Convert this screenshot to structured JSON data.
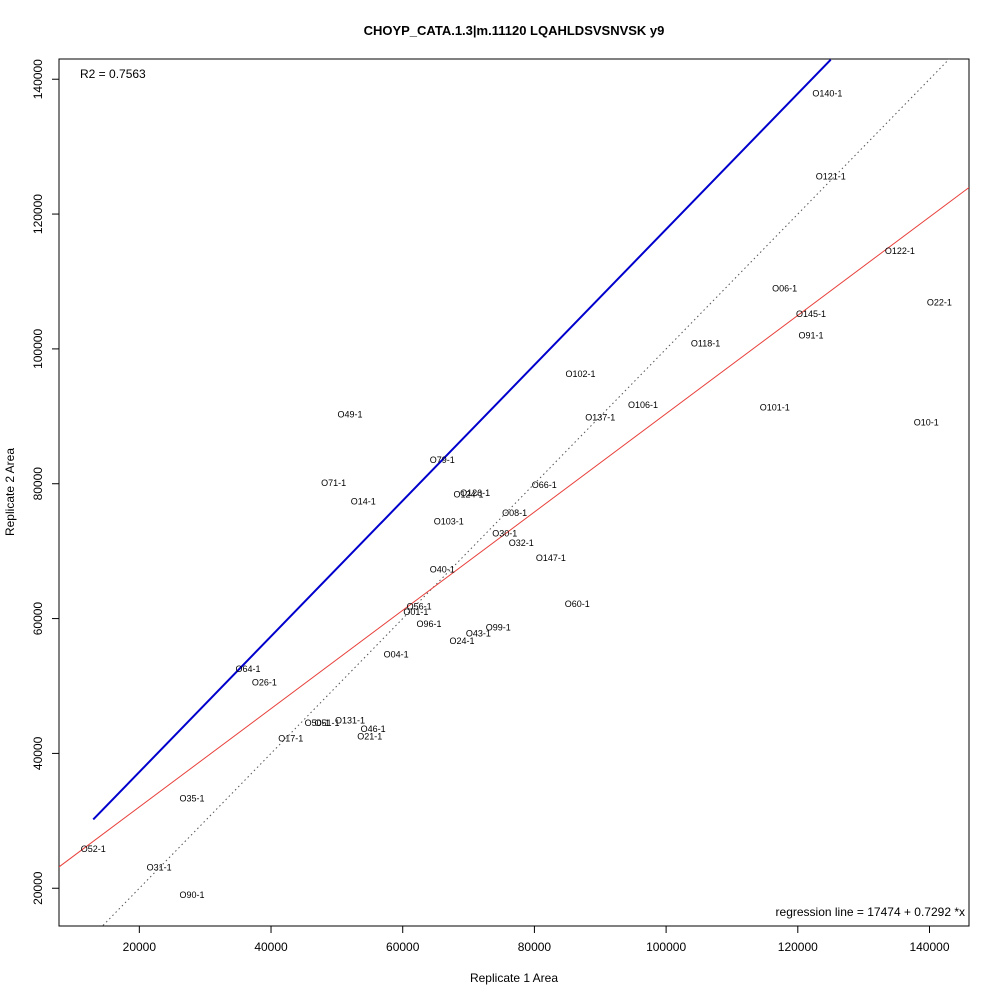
{
  "chart_data": {
    "type": "scatter",
    "title": "CHOYP_CATA.1.3|m.11120 LQAHLDSVSNVSK y9",
    "xlabel": "Replicate 1 Area",
    "ylabel": "Replicate 2 Area",
    "xlim": [
      7800,
      146000
    ],
    "ylim": [
      14400,
      143000
    ],
    "x_ticks": [
      20000,
      40000,
      60000,
      80000,
      100000,
      120000,
      140000
    ],
    "y_ticks": [
      20000,
      40000,
      60000,
      80000,
      100000,
      120000,
      140000
    ],
    "r2_text": "R2 = 0.7563",
    "regression_text": "regression line = 17474 + 0.7292 *x",
    "regression": {
      "intercept": 17474,
      "slope": 0.7292,
      "color": "#e8413c"
    },
    "identity_line": {
      "slope": 1,
      "intercept": 0,
      "color": "#555555",
      "style": "dotted"
    },
    "blue_line": {
      "x": [
        13000,
        125000
      ],
      "y": [
        30200,
        142900
      ],
      "color": "#0000cc"
    },
    "points": [
      {
        "label": "O140-1",
        "x": 124500,
        "y": 137800
      },
      {
        "label": "O121-1",
        "x": 125000,
        "y": 125500
      },
      {
        "label": "O122-1",
        "x": 135500,
        "y": 114400
      },
      {
        "label": "O22-1",
        "x": 141500,
        "y": 106800
      },
      {
        "label": "O06-1",
        "x": 118000,
        "y": 108900
      },
      {
        "label": "O145-1",
        "x": 122000,
        "y": 105100
      },
      {
        "label": "O91-1",
        "x": 122000,
        "y": 101900
      },
      {
        "label": "O118-1",
        "x": 106000,
        "y": 100700
      },
      {
        "label": "O102-1",
        "x": 87000,
        "y": 96200
      },
      {
        "label": "O106-1",
        "x": 96500,
        "y": 91600
      },
      {
        "label": "O137-1",
        "x": 90000,
        "y": 89700
      },
      {
        "label": "O101-1",
        "x": 116500,
        "y": 91200
      },
      {
        "label": "O10-1",
        "x": 139500,
        "y": 89000
      },
      {
        "label": "O49-1",
        "x": 52000,
        "y": 90200
      },
      {
        "label": "O79-1",
        "x": 66000,
        "y": 83400
      },
      {
        "label": "O71-1",
        "x": 49500,
        "y": 80000
      },
      {
        "label": "O66-1",
        "x": 81500,
        "y": 79700
      },
      {
        "label": "O14-1",
        "x": 54000,
        "y": 77300
      },
      {
        "label": "O124-1",
        "x": 70000,
        "y": 78300
      },
      {
        "label": "O126-1",
        "x": 71000,
        "y": 78500
      },
      {
        "label": "O08-1",
        "x": 77000,
        "y": 75600
      },
      {
        "label": "O103-1",
        "x": 67000,
        "y": 74300
      },
      {
        "label": "O30-1",
        "x": 75500,
        "y": 72500
      },
      {
        "label": "O32-1",
        "x": 78000,
        "y": 71100
      },
      {
        "label": "O147-1",
        "x": 82500,
        "y": 68900
      },
      {
        "label": "O40-1",
        "x": 66000,
        "y": 67200
      },
      {
        "label": "O60-1",
        "x": 86500,
        "y": 62100
      },
      {
        "label": "O56-1",
        "x": 62500,
        "y": 61700
      },
      {
        "label": "O01-1",
        "x": 62000,
        "y": 60900
      },
      {
        "label": "O96-1",
        "x": 64000,
        "y": 59100
      },
      {
        "label": "O99-1",
        "x": 74500,
        "y": 58600
      },
      {
        "label": "O43-1",
        "x": 71500,
        "y": 57700
      },
      {
        "label": "O24-1",
        "x": 69000,
        "y": 56600
      },
      {
        "label": "O04-1",
        "x": 59000,
        "y": 54600
      },
      {
        "label": "O64-1",
        "x": 36500,
        "y": 52400
      },
      {
        "label": "O26-1",
        "x": 39000,
        "y": 50400
      },
      {
        "label": "O131-1",
        "x": 52000,
        "y": 44800
      },
      {
        "label": "O50-1",
        "x": 47000,
        "y": 44400
      },
      {
        "label": "O51-1",
        "x": 48500,
        "y": 44400
      },
      {
        "label": "O46-1",
        "x": 55500,
        "y": 43500
      },
      {
        "label": "O21-1",
        "x": 55000,
        "y": 42400
      },
      {
        "label": "O17-1",
        "x": 43000,
        "y": 42100
      },
      {
        "label": "O35-1",
        "x": 28000,
        "y": 33200
      },
      {
        "label": "O52-1",
        "x": 13000,
        "y": 25700
      },
      {
        "label": "O31-1",
        "x": 23000,
        "y": 23000
      },
      {
        "label": "O90-1",
        "x": 28000,
        "y": 18900
      }
    ]
  }
}
